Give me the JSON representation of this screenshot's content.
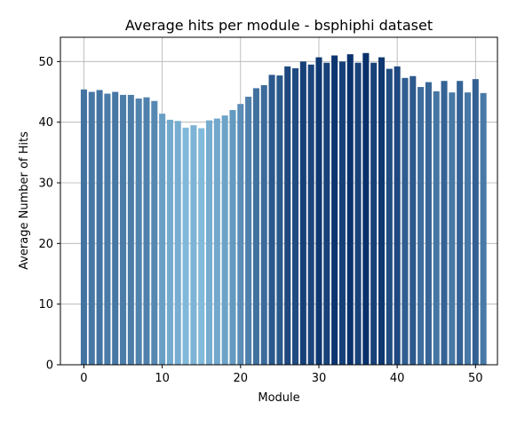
{
  "chart_data": {
    "type": "bar",
    "title": "Average hits per module - bsphiphi dataset",
    "xlabel": "Module",
    "ylabel": "Average Number of Hits",
    "xlim": [
      -3,
      52.8
    ],
    "ylim": [
      0,
      54
    ],
    "xticks": [
      0,
      10,
      20,
      30,
      40,
      50
    ],
    "yticks": [
      0,
      10,
      20,
      30,
      40,
      50
    ],
    "grid": true,
    "color_scale": {
      "name": "Blues",
      "low": "#82badb",
      "high": "#08306b"
    },
    "x": [
      0,
      1,
      2,
      3,
      4,
      5,
      6,
      7,
      8,
      9,
      10,
      11,
      12,
      13,
      14,
      15,
      16,
      17,
      18,
      19,
      20,
      21,
      22,
      23,
      24,
      25,
      26,
      27,
      28,
      29,
      30,
      31,
      32,
      33,
      34,
      35,
      36,
      37,
      38,
      39,
      40,
      41,
      42,
      43,
      44,
      45,
      46,
      47,
      48,
      49,
      50,
      51
    ],
    "values": [
      45.4,
      45.0,
      45.3,
      44.7,
      45.0,
      44.5,
      44.5,
      43.9,
      44.1,
      43.5,
      41.4,
      40.4,
      40.2,
      39.1,
      39.5,
      39.0,
      40.3,
      40.6,
      41.1,
      42.0,
      43.0,
      44.2,
      45.6,
      46.1,
      47.8,
      47.7,
      49.2,
      48.9,
      50.0,
      49.5,
      50.7,
      49.8,
      51.0,
      50.0,
      51.2,
      49.8,
      51.4,
      49.8,
      50.7,
      48.8,
      49.2,
      47.3,
      47.6,
      45.8,
      46.6,
      45.1,
      46.8,
      44.9,
      46.8,
      44.9,
      47.1,
      44.8
    ]
  }
}
